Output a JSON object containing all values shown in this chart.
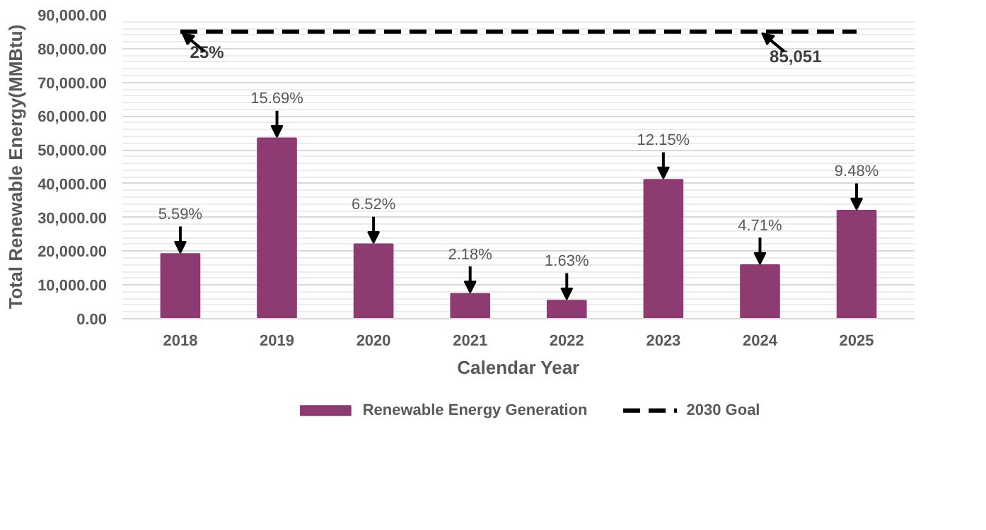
{
  "chart_data": {
    "type": "bar",
    "xlabel": "Calendar Year",
    "ylabel": "Total Renewable Energy(MMBtu)",
    "categories": [
      "2018",
      "2019",
      "2020",
      "2021",
      "2022",
      "2023",
      "2024",
      "2025"
    ],
    "series": [
      {
        "name": "Renewable Energy Generation",
        "type": "bar",
        "color": "#8e3b72",
        "values": [
          19200,
          53500,
          22100,
          7400,
          5400,
          41200,
          15900,
          32000
        ]
      },
      {
        "name": "2030 Goal",
        "type": "line",
        "color": "#000000",
        "line_style": "dashed",
        "values": [
          85051,
          85051,
          85051,
          85051,
          85051,
          85051,
          85051,
          85051
        ]
      }
    ],
    "annotations": [
      {
        "text": "25%",
        "x": "2018",
        "y": 85051
      },
      {
        "text": "85,051",
        "x": "2024",
        "y": 85051
      },
      {
        "text": "5.59%",
        "x": "2018",
        "y": 19200
      },
      {
        "text": "15.69%",
        "x": "2019",
        "y": 53500
      },
      {
        "text": "6.52%",
        "x": "2020",
        "y": 22100
      },
      {
        "text": "2.18%",
        "x": "2021",
        "y": 7400
      },
      {
        "text": "1.63%",
        "x": "2022",
        "y": 5400
      },
      {
        "text": "12.15%",
        "x": "2023",
        "y": 41200
      },
      {
        "text": "4.71%",
        "x": "2024",
        "y": 15900
      },
      {
        "text": "9.48%",
        "x": "2025",
        "y": 32000
      }
    ],
    "ylim": [
      0,
      90000
    ],
    "yticks": [
      {
        "value": 0,
        "label": "0.00"
      },
      {
        "value": 10000,
        "label": "10,000.00"
      },
      {
        "value": 20000,
        "label": "20,000.00"
      },
      {
        "value": 30000,
        "label": "30,000.00"
      },
      {
        "value": 40000,
        "label": "40,000.00"
      },
      {
        "value": 50000,
        "label": "50,000.00"
      },
      {
        "value": 60000,
        "label": "60,000.00"
      },
      {
        "value": 70000,
        "label": "70,000.00"
      },
      {
        "value": 80000,
        "label": "80,000.00"
      },
      {
        "value": 90000,
        "label": "90,000.00"
      }
    ],
    "grid": "y",
    "legend": "bottom"
  }
}
